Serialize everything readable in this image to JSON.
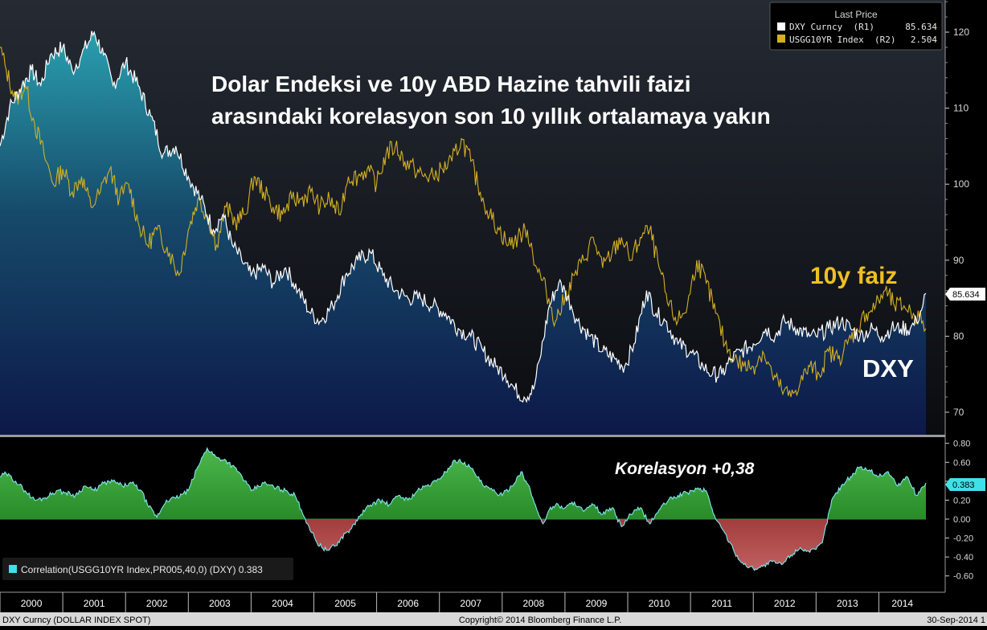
{
  "chart_data": [
    {
      "type": "line",
      "title": "Dolar Endeksi ve 10y ABD Hazine tahvili faizi arasındaki korelasyon son 10 yıllık ortalamaya yakın",
      "title_lines": [
        "Dolar Endeksi ve 10y ABD Hazine tahvili faizi",
        "arasındaki korelasyon son 10 yıllık ortalamaya yakın"
      ],
      "xlim": [
        2000.0,
        2014.75
      ],
      "ylim": [
        67,
        125
      ],
      "y_ticks": [
        70,
        80,
        90,
        100,
        110,
        120
      ],
      "y_tick_labels": [
        "70",
        "80",
        "90",
        "100",
        "110",
        "120"
      ],
      "grid": false,
      "legend": {
        "placement": "top-right",
        "header": "Last Price",
        "entries": [
          {
            "label": "DXY Curncy  (R1)",
            "value": "85.634",
            "color": "#ffffff"
          },
          {
            "label": "USGG10YR Index  (R2)",
            "value": "2.504",
            "color": "#d4b020"
          }
        ]
      },
      "annotations": {
        "yield_label": "10y faiz",
        "dxy_label": "DXY",
        "last_value_badge": "85.634"
      },
      "series": [
        {
          "name": "DXY Curncy (R1)",
          "color": "#ffffff",
          "fill": "area",
          "x": [
            2000.0,
            2000.15,
            2000.35,
            2000.5,
            2000.65,
            2000.8,
            2001.0,
            2001.15,
            2001.3,
            2001.5,
            2001.65,
            2001.8,
            2002.0,
            2002.2,
            2002.4,
            2002.6,
            2002.8,
            2003.0,
            2003.2,
            2003.4,
            2003.55,
            2003.7,
            2003.85,
            2004.0,
            2004.2,
            2004.35,
            2004.55,
            2004.75,
            2004.95,
            2005.1,
            2005.3,
            2005.5,
            2005.7,
            2005.9,
            2006.1,
            2006.3,
            2006.5,
            2006.7,
            2006.9,
            2007.1,
            2007.3,
            2007.5,
            2007.7,
            2007.9,
            2008.05,
            2008.2,
            2008.35,
            2008.5,
            2008.6,
            2008.75,
            2008.9,
            2009.0,
            2009.1,
            2009.2,
            2009.4,
            2009.6,
            2009.8,
            2009.95,
            2010.1,
            2010.3,
            2010.45,
            2010.6,
            2010.8,
            2011.0,
            2011.2,
            2011.35,
            2011.5,
            2011.65,
            2011.8,
            2012.0,
            2012.2,
            2012.35,
            2012.5,
            2012.7,
            2012.9,
            2013.0,
            2013.2,
            2013.4,
            2013.55,
            2013.7,
            2013.9,
            2014.05,
            2014.2,
            2014.35,
            2014.5,
            2014.6,
            2014.7,
            2014.75
          ],
          "values": [
            105,
            110,
            113,
            115,
            113,
            117,
            118,
            115,
            117,
            120,
            117,
            113,
            116,
            113,
            109,
            104,
            105,
            101,
            98,
            94,
            96,
            92,
            90,
            88,
            89,
            87,
            89,
            86,
            83,
            82,
            84,
            88,
            90,
            91,
            88,
            86,
            85,
            85,
            84,
            83,
            81,
            80,
            78,
            76,
            75,
            73,
            72,
            73,
            77,
            84,
            87,
            86,
            84,
            82,
            80,
            78,
            77,
            76,
            79,
            86,
            83,
            82,
            79,
            78,
            76,
            75,
            75,
            77,
            78,
            79,
            81,
            80,
            82,
            81,
            80,
            80,
            81,
            82,
            81,
            80,
            81,
            80,
            81,
            81,
            81,
            82,
            84,
            85.634
          ]
        },
        {
          "name": "USGG10YR Index (R2)",
          "color": "#d4b020",
          "x": [
            2000.0,
            2000.1,
            2000.25,
            2000.4,
            2000.55,
            2000.7,
            2000.85,
            2001.0,
            2001.15,
            2001.3,
            2001.45,
            2001.6,
            2001.75,
            2001.9,
            2002.05,
            2002.2,
            2002.35,
            2002.5,
            2002.7,
            2002.85,
            2003.0,
            2003.15,
            2003.3,
            2003.45,
            2003.6,
            2003.75,
            2003.9,
            2004.05,
            2004.2,
            2004.35,
            2004.5,
            2004.65,
            2004.8,
            2004.95,
            2005.1,
            2005.25,
            2005.4,
            2005.55,
            2005.7,
            2005.85,
            2006.0,
            2006.15,
            2006.3,
            2006.45,
            2006.6,
            2006.75,
            2006.9,
            2007.05,
            2007.2,
            2007.35,
            2007.5,
            2007.65,
            2007.8,
            2007.95,
            2008.1,
            2008.25,
            2008.4,
            2008.55,
            2008.7,
            2008.85,
            2009.0,
            2009.15,
            2009.3,
            2009.45,
            2009.6,
            2009.75,
            2009.9,
            2010.05,
            2010.2,
            2010.35,
            2010.5,
            2010.65,
            2010.8,
            2010.95,
            2011.1,
            2011.25,
            2011.4,
            2011.55,
            2011.7,
            2011.85,
            2012.0,
            2012.15,
            2012.3,
            2012.45,
            2012.6,
            2012.75,
            2012.9,
            2013.05,
            2013.2,
            2013.35,
            2013.5,
            2013.65,
            2013.8,
            2013.95,
            2014.1,
            2014.25,
            2014.4,
            2014.55,
            2014.7,
            2014.75
          ],
          "values": [
            118,
            115,
            111,
            113,
            108,
            104,
            100,
            102,
            99,
            101,
            97,
            99,
            102,
            98,
            100,
            95,
            92,
            94,
            91,
            88,
            94,
            98,
            96,
            92,
            97,
            95,
            96,
            101,
            99,
            97,
            96,
            98,
            98,
            99,
            97,
            98,
            96,
            101,
            101,
            102,
            100,
            104,
            105,
            103,
            102,
            101,
            101,
            102,
            103,
            106,
            103,
            99,
            96,
            94,
            92,
            93,
            94,
            89,
            86,
            82,
            85,
            88,
            90,
            93,
            89,
            91,
            93,
            90,
            93,
            94,
            89,
            84,
            82,
            84,
            90,
            87,
            83,
            79,
            77,
            76,
            76,
            78,
            75,
            73,
            72,
            74,
            76,
            75,
            78,
            77,
            79,
            81,
            83,
            84,
            86,
            84,
            84,
            83,
            82,
            81
          ]
        }
      ]
    },
    {
      "type": "area",
      "xlim": [
        2000.0,
        2014.75
      ],
      "ylim": [
        -0.7,
        0.85
      ],
      "y_ticks": [
        0.8,
        0.6,
        0.4,
        0.2,
        0.0,
        -0.2,
        -0.4,
        -0.6
      ],
      "y_tick_labels": [
        "0.80",
        "0.60",
        "0.40",
        "0.20",
        "0.00",
        "-0.20",
        "-0.40",
        "-0.60"
      ],
      "x_tick_labels": [
        "2000",
        "2001",
        "2002",
        "2003",
        "2004",
        "2005",
        "2006",
        "2007",
        "2008",
        "2009",
        "2010",
        "2011",
        "2012",
        "2013",
        "2014"
      ],
      "annotation": "Korelasyon +0,38",
      "last_value_badge": "0.383",
      "legend": {
        "placement": "bottom-left",
        "label": "Correlation(USGG10YR Index,PR005,40,0) (DXY) 0.383",
        "color": "#40e0e8"
      },
      "colors": {
        "positive_fill": "#1e7a1e",
        "negative_fill": "#8a1010",
        "line": "#7fe8ee"
      },
      "series": [
        {
          "name": "Correlation(USGG10YR Index,PR005,40,0) (DXY)",
          "x": [
            2000.0,
            2000.1,
            2000.25,
            2000.4,
            2000.55,
            2000.7,
            2000.9,
            2001.05,
            2001.2,
            2001.35,
            2001.5,
            2001.65,
            2001.8,
            2001.95,
            2002.1,
            2002.25,
            2002.35,
            2002.5,
            2002.65,
            2002.8,
            2003.0,
            2003.15,
            2003.3,
            2003.45,
            2003.6,
            2003.8,
            2004.0,
            2004.2,
            2004.4,
            2004.55,
            2004.7,
            2004.8,
            2004.9,
            2005.05,
            2005.2,
            2005.35,
            2005.5,
            2005.6,
            2005.75,
            2005.9,
            2006.05,
            2006.2,
            2006.35,
            2006.5,
            2006.65,
            2006.8,
            2006.95,
            2007.1,
            2007.25,
            2007.4,
            2007.55,
            2007.7,
            2007.85,
            2008.0,
            2008.15,
            2008.3,
            2008.45,
            2008.55,
            2008.65,
            2008.75,
            2008.85,
            2009.0,
            2009.15,
            2009.3,
            2009.45,
            2009.6,
            2009.75,
            2009.9,
            2010.05,
            2010.2,
            2010.35,
            2010.5,
            2010.65,
            2010.8,
            2010.95,
            2011.1,
            2011.25,
            2011.4,
            2011.55,
            2011.7,
            2011.85,
            2012.0,
            2012.15,
            2012.3,
            2012.45,
            2012.6,
            2012.75,
            2012.9,
            2013.0,
            2013.1,
            2013.25,
            2013.4,
            2013.55,
            2013.7,
            2013.85,
            2014.0,
            2014.15,
            2014.3,
            2014.45,
            2014.6,
            2014.75
          ],
          "values": [
            0.45,
            0.48,
            0.4,
            0.3,
            0.2,
            0.22,
            0.3,
            0.28,
            0.25,
            0.35,
            0.3,
            0.38,
            0.4,
            0.35,
            0.38,
            0.3,
            0.15,
            0.02,
            0.2,
            0.22,
            0.3,
            0.55,
            0.75,
            0.65,
            0.62,
            0.5,
            0.3,
            0.38,
            0.33,
            0.3,
            0.25,
            0.1,
            -0.05,
            -0.25,
            -0.33,
            -0.28,
            -0.15,
            -0.1,
            0.05,
            0.15,
            0.2,
            0.15,
            0.25,
            0.2,
            0.3,
            0.35,
            0.4,
            0.5,
            0.62,
            0.6,
            0.5,
            0.35,
            0.3,
            0.25,
            0.35,
            0.5,
            0.3,
            0.1,
            -0.05,
            0.1,
            0.15,
            0.12,
            0.18,
            0.08,
            0.15,
            0.05,
            0.12,
            -0.08,
            0.05,
            0.12,
            -0.05,
            0.1,
            0.2,
            0.25,
            0.28,
            0.32,
            0.3,
            0.0,
            -0.15,
            -0.35,
            -0.48,
            -0.52,
            -0.5,
            -0.45,
            -0.48,
            -0.38,
            -0.3,
            -0.35,
            -0.32,
            -0.25,
            0.2,
            0.35,
            0.45,
            0.55,
            0.52,
            0.45,
            0.5,
            0.35,
            0.45,
            0.25,
            0.383
          ]
        }
      ]
    }
  ],
  "footer": {
    "left": "DXY Curncy (DOLLAR INDEX SPOT)",
    "center": "Copyright© 2014 Bloomberg Finance L.P.",
    "right": "30-Sep-2014 1"
  }
}
